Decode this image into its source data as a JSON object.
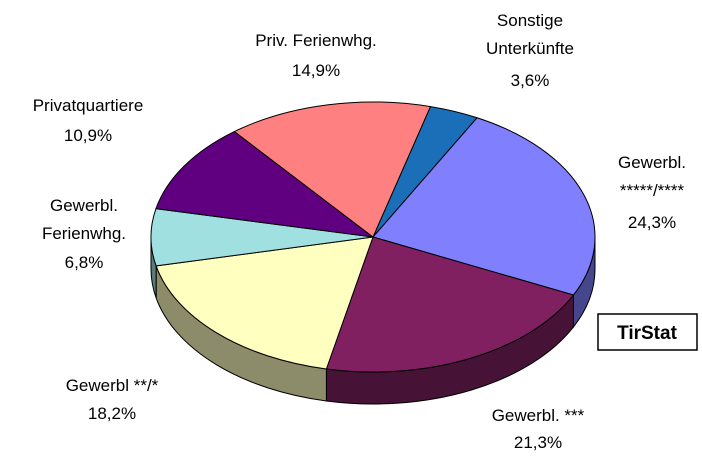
{
  "chart_data": {
    "type": "pie",
    "categories": [
      "Sonstige\nUnterkünfte",
      "Gewerbl.\n*****/****",
      "Gewerbl. ***",
      "Gewerbl **/*",
      "Gewerbl.\nFerienwhg.",
      "Privatquartiere",
      "Priv. Ferienwhg."
    ],
    "values": [
      3.6,
      24.3,
      21.3,
      18.2,
      6.8,
      10.9,
      14.9
    ],
    "value_labels": [
      "3,6%",
      "24,3%",
      "21,3%",
      "18,2%",
      "6,8%",
      "10,9%",
      "14,9%"
    ],
    "colors": [
      "#1a6fb8",
      "#8080ff",
      "#802060",
      "#ffffc0",
      "#a0e0e0",
      "#600080",
      "#ff8080"
    ],
    "source": "TirStat"
  }
}
